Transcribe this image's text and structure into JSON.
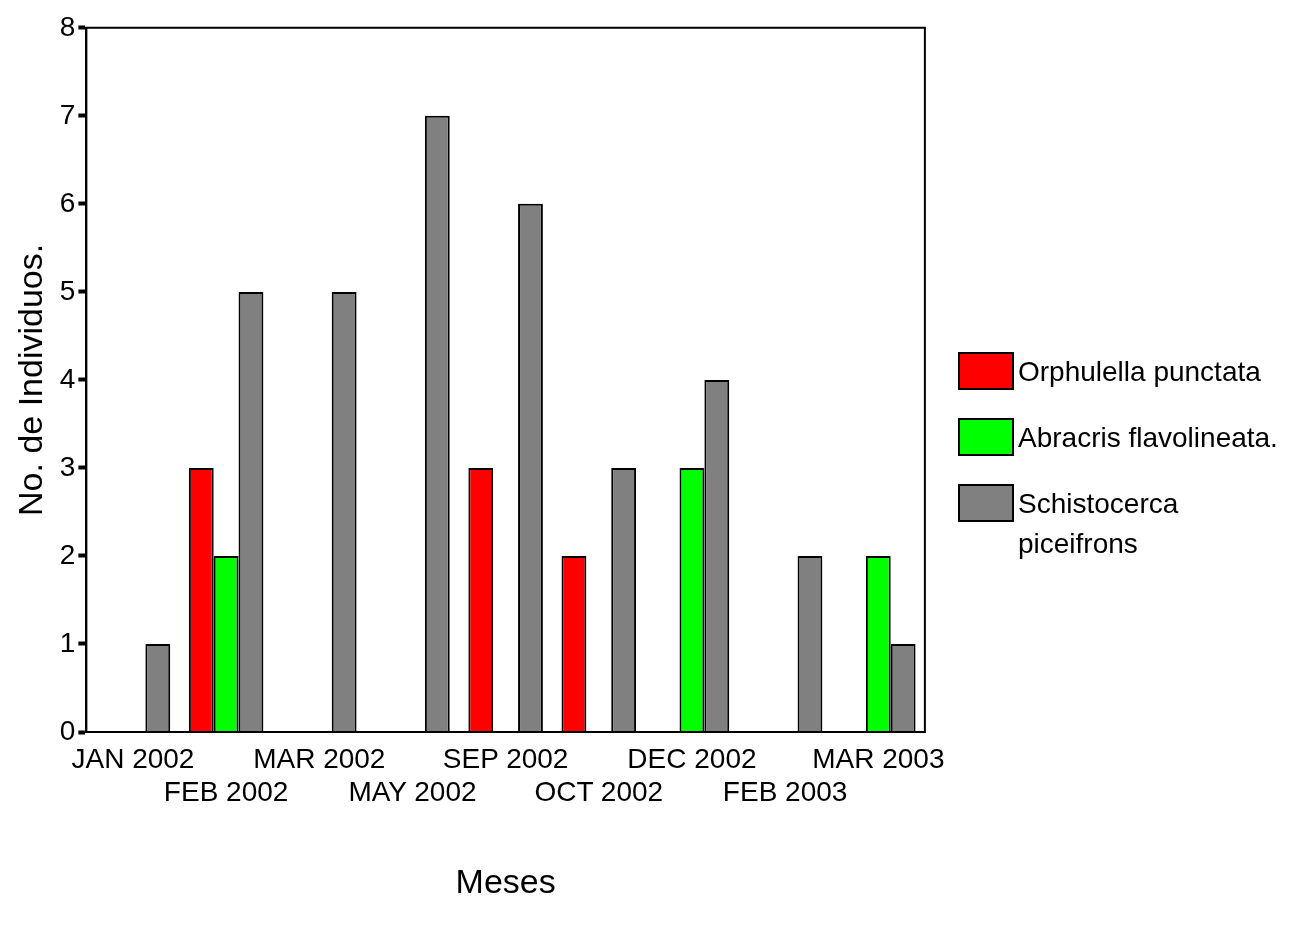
{
  "chart_data": {
    "type": "bar",
    "xlabel": "Meses",
    "ylabel": "No. de Individuos.",
    "categories": [
      "JAN 2002",
      "FEB 2002",
      "MAR 2002",
      "MAY 2002",
      "SEP 2002",
      "OCT 2002",
      "DEC 2002",
      "FEB 2003",
      "MAR 2003"
    ],
    "series": [
      {
        "name": "Orphulella punctata",
        "color": "#ff0000",
        "values": [
          0,
          3,
          0,
          0,
          3,
          2,
          0,
          0,
          0
        ]
      },
      {
        "name": "Abracris flavolineata.",
        "color": "#00ff00",
        "values": [
          0,
          2,
          0,
          0,
          0,
          0,
          3,
          0,
          2
        ]
      },
      {
        "name": "Schistocerca piceifrons",
        "color": "#808080",
        "values": [
          1,
          5,
          5,
          7,
          6,
          3,
          4,
          2,
          1
        ]
      }
    ],
    "ylim": [
      0,
      8
    ],
    "yticks": [
      0,
      1,
      2,
      3,
      4,
      5,
      6,
      7,
      8
    ],
    "grid": false,
    "legend": "right"
  }
}
